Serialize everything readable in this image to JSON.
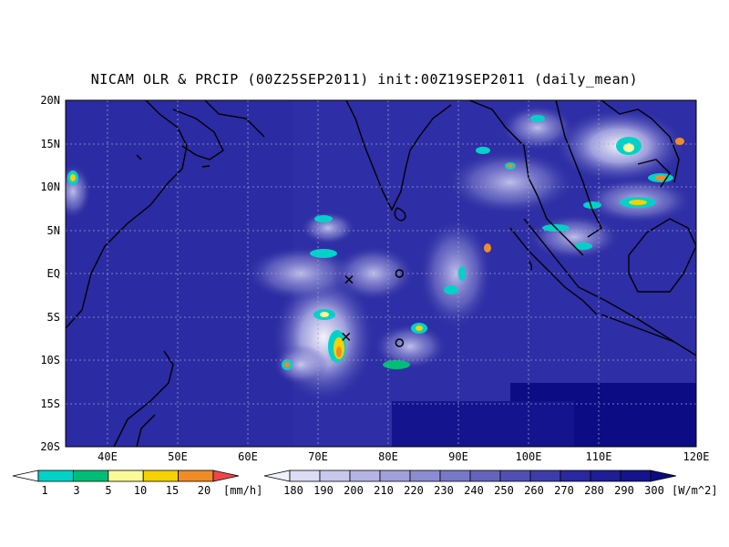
{
  "title": "NICAM OLR & PRCIP (00Z25SEP2011) init:00Z19SEP2011 (daily_mean)",
  "lat_labels": [
    "20N",
    "15N",
    "10N",
    "5N",
    "EQ",
    "5S",
    "10S",
    "15S",
    "20S"
  ],
  "lon_labels": [
    "40E",
    "50E",
    "60E",
    "70E",
    "80E",
    "90E",
    "100E",
    "110E",
    "120E"
  ],
  "precip_colorbar": {
    "labels": [
      "1",
      "3",
      "5",
      "10",
      "15",
      "20"
    ],
    "unit": "[mm/h]",
    "colors": [
      "#00d2c8",
      "#00be78",
      "#fafa96",
      "#f5d200",
      "#f08c28",
      "#f04646"
    ]
  },
  "olr_colorbar": {
    "labels": [
      "180",
      "190",
      "200",
      "210",
      "220",
      "230",
      "240",
      "250",
      "260",
      "270",
      "280",
      "290",
      "300"
    ],
    "unit": "[W/m^2]",
    "colors": [
      "#f0f0ff",
      "#dcdcf5",
      "#c8c8ee",
      "#b4b4e6",
      "#a0a0dc",
      "#8c8cd2",
      "#7878c8",
      "#6464be",
      "#5050b4",
      "#3c3caa",
      "#2828a0",
      "#1e1e96",
      "#14148c",
      "#0a0a82"
    ]
  },
  "markers": [
    {
      "type": "x",
      "lon": 73.2,
      "lat": -0.7
    },
    {
      "type": "circle",
      "lon": 80.0,
      "lat": 0.0
    },
    {
      "type": "x",
      "lon": 72.8,
      "lat": -7.3
    },
    {
      "type": "circle",
      "lon": 80.0,
      "lat": -8.0
    }
  ]
}
